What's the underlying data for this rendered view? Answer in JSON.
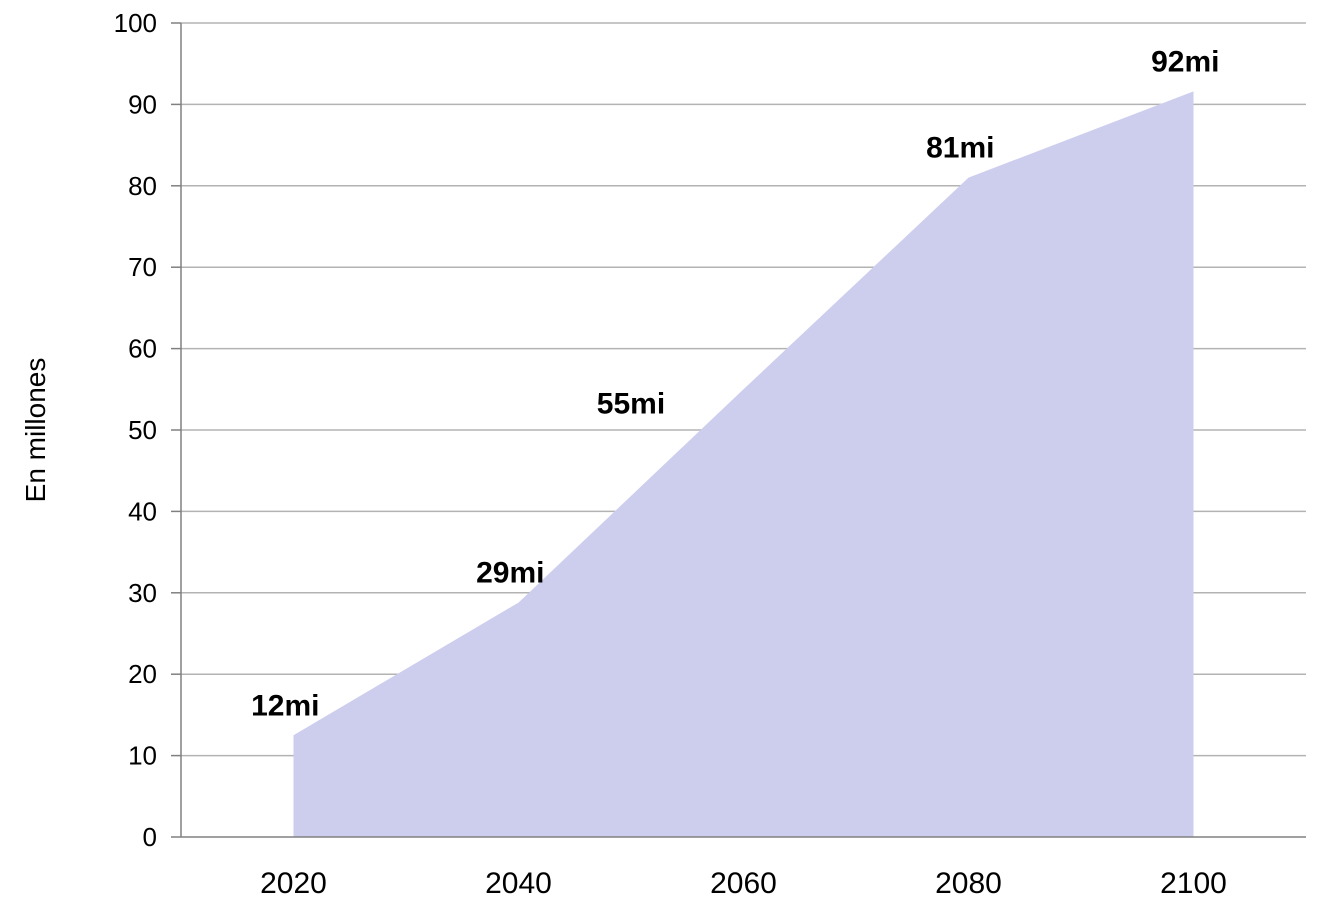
{
  "chart_data": {
    "type": "area",
    "ylabel": "En millones",
    "xlabel": "",
    "title": "",
    "ylim": [
      0,
      100
    ],
    "yticks": [
      "0",
      "10",
      "20",
      "30",
      "40",
      "50",
      "60",
      "70",
      "80",
      "90",
      "100"
    ],
    "ytick_values": [
      0,
      10,
      20,
      30,
      40,
      50,
      60,
      70,
      80,
      90,
      100
    ],
    "categories": [
      "2020",
      "2040",
      "2060",
      "2080",
      "2100"
    ],
    "x": [
      2020,
      2040,
      2060,
      2080,
      2100
    ],
    "series": [
      {
        "values": [
          12.5,
          28.8,
          55.0,
          81.0,
          91.6
        ],
        "points": [
          {
            "x": 2020,
            "y": 12.5,
            "label": "12mi"
          },
          {
            "x": 2040,
            "y": 28.8,
            "label": "29mi"
          },
          {
            "x": 2080,
            "y": 81.0,
            "label": "81mi"
          },
          {
            "x": 2100,
            "y": 91.6,
            "label": "92mi"
          }
        ]
      }
    ],
    "annotations": [
      {
        "x": 2050,
        "y": 53,
        "text": "55mi"
      }
    ],
    "grid": true,
    "colors": {
      "area": "#cdcdee",
      "grid": "#b3b3b3",
      "axis": "#808080",
      "text": "#000000"
    }
  }
}
